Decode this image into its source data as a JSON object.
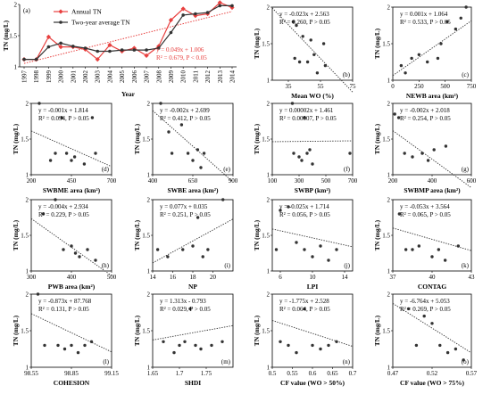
{
  "chart_data": [
    {
      "id": "a",
      "panel_label": "(a)",
      "type": "line",
      "xlabel": "Year",
      "ylabel": "TN (mg/L)",
      "x": [
        1997,
        1998,
        1999,
        2000,
        2001,
        2002,
        2003,
        2004,
        2005,
        2006,
        2007,
        2008,
        2009,
        2010,
        2011,
        2012,
        2013,
        2014
      ],
      "xticks": [
        "1997",
        "1998",
        "1999",
        "2000",
        "2001",
        "2002",
        "2003",
        "2004",
        "2005",
        "2006",
        "2007",
        "2008",
        "2009",
        "2010",
        "2011",
        "2012",
        "2013",
        "2014"
      ],
      "ylim": [
        1,
        2
      ],
      "yticks": [
        "1",
        "1.5",
        "2"
      ],
      "series": [
        {
          "name": "Annual TN",
          "color": "#e8403f",
          "marker": "diamond",
          "values": [
            1.12,
            1.12,
            1.48,
            1.32,
            1.32,
            1.28,
            1.12,
            1.35,
            1.25,
            1.3,
            1.18,
            1.33,
            1.75,
            1.93,
            1.82,
            1.85,
            2.03,
            1.95
          ]
        },
        {
          "name": "Two-year average TN",
          "color": "#333333",
          "marker": "circle",
          "values": [
            1.12,
            1.12,
            1.32,
            1.38,
            1.33,
            1.3,
            1.25,
            1.25,
            1.27,
            1.27,
            1.27,
            1.3,
            1.55,
            1.83,
            1.85,
            1.87,
            1.98,
            1.98
          ]
        }
      ],
      "trend": {
        "slope": 0.049,
        "intercept": 1.006,
        "color": "#e8403f"
      },
      "equation": "y = 0.049x + 1.006",
      "stats": "R² = 0.679, P < 0.05"
    },
    {
      "id": "b",
      "panel_label": "(b)",
      "type": "scatter",
      "xlabel": "Mean WO (%)",
      "ylabel": "TN (mg/L)",
      "xlim": [
        25,
        75
      ],
      "xticks": [
        35,
        55,
        75
      ],
      "ylim": [
        1,
        2
      ],
      "yticks": [
        "1",
        "1.5",
        "2"
      ],
      "x": [
        38,
        39,
        40,
        42,
        44,
        47,
        49,
        51,
        53,
        57,
        58
      ],
      "y": [
        1.8,
        1.3,
        1.75,
        1.25,
        1.6,
        1.25,
        1.55,
        1.35,
        1.1,
        1.5,
        1.2
      ],
      "trend": {
        "slope": -0.023,
        "intercept": 2.563
      },
      "equation": "y = -0.023x + 2.563",
      "stats": "R² = 0.260, P > 0.05"
    },
    {
      "id": "c",
      "panel_label": "(c)",
      "type": "scatter",
      "xlabel": "NEWB area (km²)",
      "ylabel": "TN (mg/L)",
      "xlim": [
        0,
        750
      ],
      "xticks": [
        0,
        250,
        500,
        750
      ],
      "ylim": [
        1,
        2
      ],
      "yticks": [
        "1",
        "1.5",
        "2"
      ],
      "x": [
        80,
        120,
        180,
        250,
        330,
        430,
        460,
        520,
        600,
        650,
        700
      ],
      "y": [
        1.2,
        1.1,
        1.3,
        1.35,
        1.25,
        1.3,
        1.5,
        1.8,
        1.7,
        1.85,
        2.0
      ],
      "trend": {
        "slope": 0.001,
        "intercept": 1.064
      },
      "equation": "y = 0.001x + 1.064",
      "stats": "R² = 0.533, P > 0.05"
    },
    {
      "id": "d",
      "panel_label": "(d)",
      "type": "scatter",
      "xlabel": "SWBME area (km²)",
      "ylabel": "TN (mg/L)",
      "xlim": [
        200,
        700
      ],
      "xticks": [
        200,
        450,
        700
      ],
      "ylim": [
        1,
        2
      ],
      "yticks": [
        "1",
        "1.5",
        "2"
      ],
      "x": [
        250,
        320,
        350,
        390,
        420,
        450,
        470,
        530,
        580,
        600
      ],
      "y": [
        2.0,
        1.2,
        1.3,
        1.8,
        1.3,
        1.2,
        1.25,
        1.15,
        1.8,
        1.3
      ],
      "trend": {
        "slope": -0.001,
        "intercept": 1.814
      },
      "equation": "y = -0.001x + 1.814",
      "stats": "R² = 0.094, P > 0.05"
    },
    {
      "id": "e",
      "panel_label": "(e)",
      "type": "scatter",
      "xlabel": "SWBE area (km²)",
      "ylabel": "TN (mg/L)",
      "xlim": [
        400,
        900
      ],
      "xticks": [
        400,
        650,
        900
      ],
      "ylim": [
        1,
        2
      ],
      "yticks": [
        "1",
        "1.5",
        "2"
      ],
      "x": [
        450,
        500,
        520,
        580,
        620,
        650,
        680,
        700,
        720
      ],
      "y": [
        2.0,
        1.6,
        1.3,
        1.7,
        1.3,
        1.2,
        1.35,
        1.1,
        1.3
      ],
      "trend": {
        "slope": -0.002,
        "intercept": 2.699
      },
      "equation": "y = -0.002x + 2.699",
      "stats": "R² = 0.412, P > 0.05"
    },
    {
      "id": "f",
      "panel_label": "(f)",
      "type": "scatter",
      "xlabel": "SWBP (km²)",
      "ylabel": "TN (mg/L)",
      "xlim": [
        100,
        700
      ],
      "xticks": [
        100,
        300,
        500,
        700
      ],
      "ylim": [
        1,
        2
      ],
      "yticks": [
        "1",
        "1.5",
        "2"
      ],
      "x": [
        250,
        260,
        300,
        320,
        340,
        360,
        380,
        400,
        680
      ],
      "y": [
        2.0,
        1.3,
        1.25,
        1.2,
        1.8,
        1.3,
        1.35,
        1.15,
        1.3
      ],
      "trend": {
        "slope": 2e-05,
        "intercept": 1.461
      },
      "equation": "y = 0.00002x + 1.461",
      "stats": "R² = 0.00007, P > 0.05"
    },
    {
      "id": "g",
      "panel_label": "(g)",
      "type": "scatter",
      "xlabel": "SWBMP area (km²)",
      "ylabel": "TN (mg/L)",
      "xlim": [
        200,
        600
      ],
      "xticks": [
        200,
        400,
        600
      ],
      "ylim": [
        1,
        2
      ],
      "yticks": [
        "1",
        "1.5",
        "2"
      ],
      "x": [
        210,
        230,
        260,
        300,
        350,
        380,
        410,
        470
      ],
      "y": [
        1.85,
        1.8,
        1.3,
        1.25,
        1.3,
        1.2,
        1.35,
        1.4
      ],
      "trend": {
        "slope": -0.002,
        "intercept": 2.018
      },
      "equation": "y = -0.002x + 2.018",
      "stats": "R² = 0.254, P > 0.05"
    },
    {
      "id": "h",
      "panel_label": "(h)",
      "type": "scatter",
      "xlabel": "PWB area (km²)",
      "ylabel": "TN (mg/L)",
      "xlim": [
        300,
        500
      ],
      "xticks": [
        300,
        400,
        500
      ],
      "ylim": [
        1,
        2
      ],
      "yticks": [
        "1",
        "1.5",
        "2"
      ],
      "x": [
        330,
        360,
        380,
        400,
        410,
        420,
        440,
        460
      ],
      "y": [
        1.8,
        2.0,
        1.3,
        1.35,
        1.25,
        1.2,
        1.3,
        1.15
      ],
      "trend": {
        "slope": -0.004,
        "intercept": 2.934
      },
      "equation": "y = -0.004x + 2.934",
      "stats": "R² = 0.229, P > 0.05"
    },
    {
      "id": "i",
      "panel_label": "(i)",
      "type": "scatter",
      "xlabel": "NP",
      "ylabel": "TN (mg/L)",
      "xlim": [
        14,
        22
      ],
      "xticks": [
        14,
        16,
        18,
        20
      ],
      "ylim": [
        1,
        2
      ],
      "yticks": [
        "1",
        "1.5",
        "2"
      ],
      "x": [
        14.5,
        15.5,
        17,
        18,
        18.5,
        19,
        19.5,
        21
      ],
      "y": [
        1.3,
        1.2,
        1.3,
        1.35,
        1.75,
        1.2,
        1.3,
        2.0
      ],
      "trend": {
        "slope": 0.077,
        "intercept": 0.035
      },
      "equation": "y = 0.077x + 0.035",
      "stats": "R² = 0.251, P > 0.05"
    },
    {
      "id": "j",
      "panel_label": "(j)",
      "type": "scatter",
      "xlabel": "LPI",
      "ylabel": "TN (mg/L)",
      "xlim": [
        5,
        15
      ],
      "xticks": [
        6,
        10,
        14
      ],
      "ylim": [
        1,
        2
      ],
      "yticks": [
        "1",
        "1.5",
        "2"
      ],
      "x": [
        5.5,
        6,
        7,
        8,
        9,
        10,
        11,
        12,
        13
      ],
      "y": [
        1.3,
        1.85,
        1.9,
        1.4,
        1.3,
        1.2,
        1.35,
        1.15,
        1.3
      ],
      "trend": {
        "slope": -0.025,
        "intercept": 1.714
      },
      "equation": "y = -0.025x + 1.714",
      "stats": "R² = 0.056, P > 0.05"
    },
    {
      "id": "k",
      "panel_label": "(k)",
      "type": "scatter",
      "xlabel": "CONTAG",
      "ylabel": "TN (mg/L)",
      "xlim": [
        37,
        43
      ],
      "xticks": [
        37,
        40,
        43
      ],
      "ylim": [
        1,
        2
      ],
      "yticks": [
        "1",
        "1.5",
        "2"
      ],
      "x": [
        37.5,
        38,
        38.5,
        39,
        40,
        40.5,
        41,
        42
      ],
      "y": [
        1.8,
        1.3,
        1.3,
        1.35,
        1.2,
        1.3,
        1.15,
        1.35
      ],
      "trend": {
        "slope": -0.053,
        "intercept": 3.564
      },
      "equation": "y = -0.053x + 3.564",
      "stats": "R² = 0.065, P > 0.05"
    },
    {
      "id": "l",
      "panel_label": "(l)",
      "type": "scatter",
      "xlabel": "COHESION",
      "ylabel": "TN (mg/L)",
      "xlim": [
        98.55,
        99.15
      ],
      "xticks": [
        98.55,
        98.85,
        99.15
      ],
      "ylim": [
        1,
        2
      ],
      "yticks": [
        "1",
        "1.5",
        "2"
      ],
      "x": [
        98.6,
        98.65,
        98.75,
        98.8,
        98.85,
        98.9,
        98.95,
        99.0
      ],
      "y": [
        2.0,
        1.3,
        1.3,
        1.25,
        1.3,
        1.2,
        1.3,
        1.35
      ],
      "trend": {
        "slope": -0.873,
        "intercept": 87.768
      },
      "equation": "y = -0.873x + 87.768",
      "stats": "R² = 0.131, P > 0.05"
    },
    {
      "id": "m",
      "panel_label": "(m)",
      "type": "scatter",
      "xlabel": "SHDI",
      "ylabel": "TN (mg/L)",
      "xlim": [
        1.65,
        1.8
      ],
      "xticks": [
        1.65,
        1.7,
        1.75
      ],
      "ylim": [
        1,
        2
      ],
      "yticks": [
        "1",
        "1.5",
        "2"
      ],
      "x": [
        1.67,
        1.69,
        1.7,
        1.71,
        1.72,
        1.73,
        1.74,
        1.76,
        1.78
      ],
      "y": [
        1.35,
        1.2,
        1.3,
        1.35,
        1.8,
        1.3,
        1.25,
        1.3,
        1.35
      ],
      "trend": {
        "slope": 1.313,
        "intercept": -0.793
      },
      "equation": "y = 1.313x - 0.793",
      "stats": "R² = 0.029, P > 0.05"
    },
    {
      "id": "n",
      "panel_label": "(n)",
      "type": "scatter",
      "xlabel": "CF value (WO > 50%)",
      "ylabel": "TN (mg/L)",
      "xlim": [
        0.5,
        0.7
      ],
      "xticks": [
        0.5,
        0.55,
        0.6,
        0.65,
        0.7
      ],
      "ylim": [
        1,
        2
      ],
      "yticks": [
        "1",
        "1.5",
        "2"
      ],
      "x": [
        0.52,
        0.54,
        0.56,
        0.58,
        0.6,
        0.62,
        0.64,
        0.66
      ],
      "y": [
        1.35,
        1.3,
        1.2,
        1.8,
        1.3,
        1.25,
        1.3,
        1.35
      ],
      "trend": {
        "slope": -1.775,
        "intercept": 2.528
      },
      "equation": "y = -1.775x + 2.528",
      "stats": "R² = 0.064, P > 0.05"
    },
    {
      "id": "o",
      "panel_label": "(o)",
      "type": "scatter",
      "xlabel": "CF value (WO > 75%)",
      "ylabel": "TN (mg/L)",
      "xlim": [
        0.47,
        0.57
      ],
      "xticks": [
        0.47,
        0.52,
        0.57
      ],
      "ylim": [
        1,
        2
      ],
      "yticks": [
        "1",
        "1.5",
        "2"
      ],
      "x": [
        0.49,
        0.5,
        0.51,
        0.52,
        0.53,
        0.54,
        0.55,
        0.56
      ],
      "y": [
        1.8,
        1.3,
        1.7,
        1.6,
        1.3,
        1.2,
        1.25,
        1.1
      ],
      "trend": {
        "slope": -6.764,
        "intercept": 5.053
      },
      "equation": "y = -6.764x + 5.053",
      "stats": "R² = 0.269, P > 0.05"
    }
  ],
  "colors": {
    "point": "#333333",
    "trend": "#333333",
    "accent": "#e8403f"
  }
}
